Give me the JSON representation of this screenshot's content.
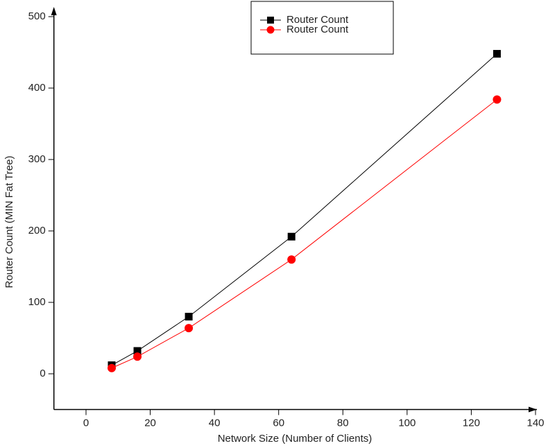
{
  "chart_data": {
    "type": "line",
    "x_label": "Network Size (Number of Clients)",
    "y_label": "Router Count (MIN Fat Tree)",
    "x": [
      8,
      16,
      32,
      64,
      128
    ],
    "series": [
      {
        "name": "Router Count",
        "color": "#000000",
        "marker": "square",
        "values": [
          12,
          32,
          80,
          192,
          448
        ]
      },
      {
        "name": "Router Count",
        "color": "#ff0000",
        "marker": "circle",
        "values": [
          8,
          24,
          64,
          160,
          384
        ]
      }
    ],
    "xlim": [
      -10,
      140
    ],
    "xticks": [
      0,
      20,
      40,
      60,
      80,
      100,
      120,
      140
    ],
    "ylim": [
      -50,
      500
    ],
    "yticks": [
      0,
      100,
      200,
      300,
      400,
      500
    ],
    "legend": "top"
  }
}
